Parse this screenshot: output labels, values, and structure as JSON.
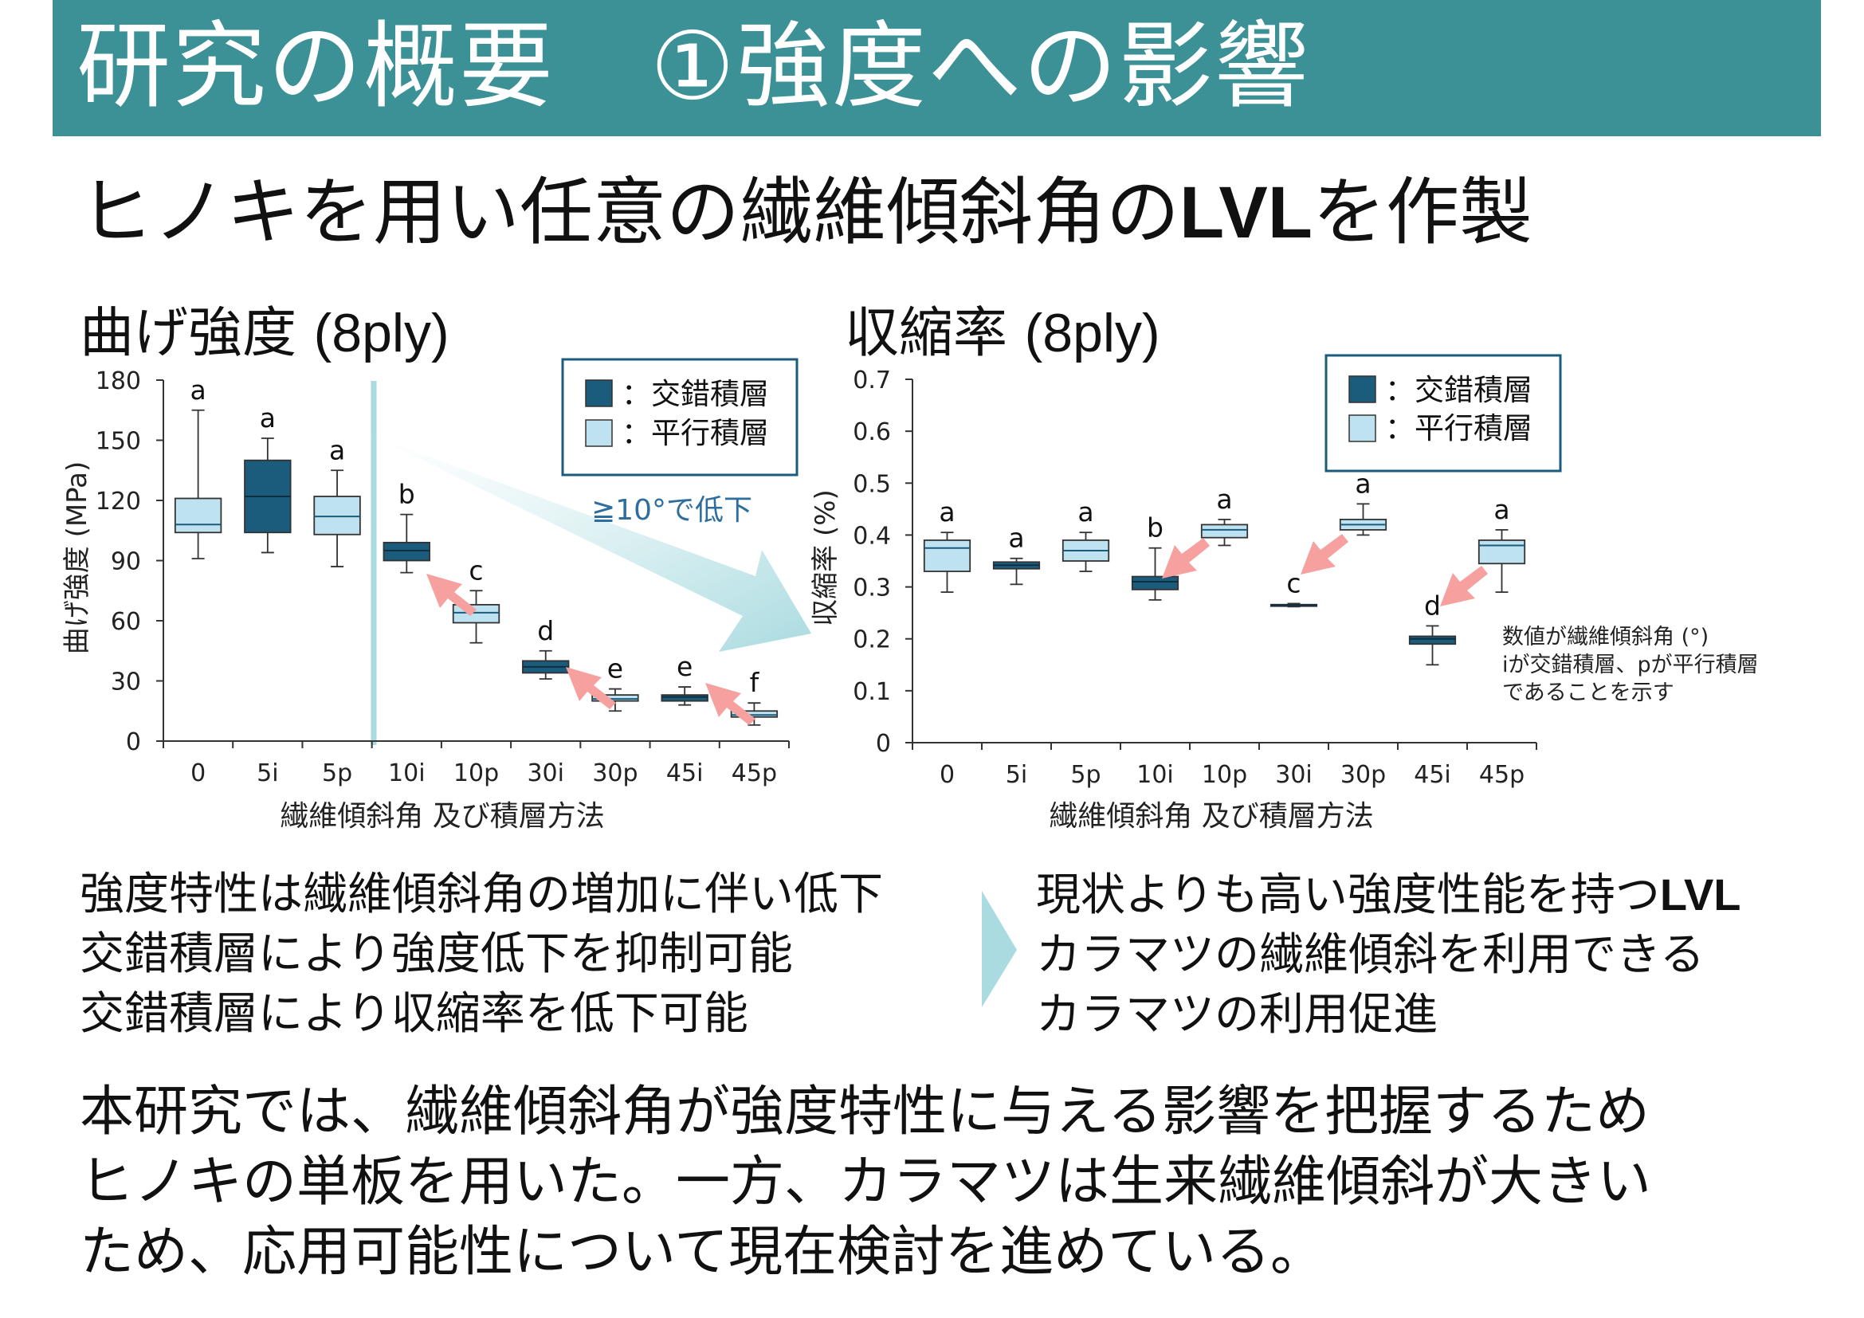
{
  "header": {
    "title": "研究の概要　①強度への影響"
  },
  "subtitle": {
    "prefix": "ヒノキを用い任意の繊維傾斜角の",
    "latin": "LVL",
    "suffix": "を作製"
  },
  "colors": {
    "header_bg": "#3b9196",
    "cross_laminated": "#1b5b7c",
    "parallel_laminated": "#bfe2f1",
    "arrow_pink": "#f7a0a0",
    "arrow_teal": "#a9dbe0",
    "callout_text": "#2d6e9e"
  },
  "chart_data": [
    {
      "type": "box",
      "title_jp": "曲げ強度",
      "title_paren": "(8ply)",
      "ylabel": "曲げ強度 (MPa)",
      "xlabel": "繊維傾斜角 及び積層方法",
      "ylim": [
        0,
        180
      ],
      "yticks": [
        "0",
        "30",
        "60",
        "90",
        "120",
        "150",
        "180"
      ],
      "categories": [
        "0",
        "5i",
        "5p",
        "10i",
        "10p",
        "30i",
        "30p",
        "45i",
        "45p"
      ],
      "legend": [
        "：交錯積層",
        "：平行積層"
      ],
      "legend_position": "top-right",
      "callout": "≧10°で低下",
      "boxes": [
        {
          "cat": "0",
          "type": "p",
          "min": 91,
          "q1": 104,
          "median": 108,
          "q3": 121,
          "max": 165,
          "letter": "a"
        },
        {
          "cat": "5i",
          "type": "i",
          "min": 94,
          "q1": 104,
          "median": 122,
          "q3": 140,
          "max": 151,
          "letter": "a"
        },
        {
          "cat": "5p",
          "type": "p",
          "min": 87,
          "q1": 103,
          "median": 112,
          "q3": 122,
          "max": 135,
          "letter": "a"
        },
        {
          "cat": "10i",
          "type": "i",
          "min": 84,
          "q1": 90,
          "median": 95,
          "q3": 99,
          "max": 113,
          "letter": "b"
        },
        {
          "cat": "10p",
          "type": "p",
          "min": 49,
          "q1": 59,
          "median": 64,
          "q3": 68,
          "max": 75,
          "letter": "c"
        },
        {
          "cat": "30i",
          "type": "i",
          "min": 31,
          "q1": 34,
          "median": 37,
          "q3": 40,
          "max": 45,
          "letter": "d"
        },
        {
          "cat": "30p",
          "type": "p",
          "min": 15,
          "q1": 20,
          "median": 21,
          "q3": 23,
          "max": 26,
          "letter": "e"
        },
        {
          "cat": "45i",
          "type": "i",
          "min": 18,
          "q1": 20,
          "median": 22,
          "q3": 23,
          "max": 27,
          "letter": "e"
        },
        {
          "cat": "45p",
          "type": "p",
          "min": 8,
          "q1": 12,
          "median": 13,
          "q3": 15,
          "max": 19,
          "letter": "f"
        }
      ]
    },
    {
      "type": "box",
      "title_jp": "収縮率",
      "title_paren": "(8ply)",
      "ylabel": "収縮率 (%)",
      "xlabel": "繊維傾斜角 及び積層方法",
      "ylim": [
        0,
        0.7
      ],
      "yticks": [
        "0",
        "0.1",
        "0.2",
        "0.3",
        "0.4",
        "0.5",
        "0.6",
        "0.7"
      ],
      "categories": [
        "0",
        "5i",
        "5p",
        "10i",
        "10p",
        "30i",
        "30p",
        "45i",
        "45p"
      ],
      "legend": [
        "：交錯積層",
        "：平行積層"
      ],
      "legend_position": "top-right",
      "note": [
        "数値が繊維傾斜角 (°)",
        "iが交錯積層、pが平行積層",
        "であることを示す"
      ],
      "boxes": [
        {
          "cat": "0",
          "type": "p",
          "min": 0.29,
          "q1": 0.33,
          "median": 0.375,
          "q3": 0.39,
          "max": 0.405,
          "letter": "a"
        },
        {
          "cat": "5i",
          "type": "i",
          "min": 0.305,
          "q1": 0.335,
          "median": 0.342,
          "q3": 0.348,
          "max": 0.355,
          "letter": "a"
        },
        {
          "cat": "5p",
          "type": "p",
          "min": 0.33,
          "q1": 0.35,
          "median": 0.37,
          "q3": 0.39,
          "max": 0.405,
          "letter": "a"
        },
        {
          "cat": "10i",
          "type": "i",
          "min": 0.275,
          "q1": 0.295,
          "median": 0.31,
          "q3": 0.32,
          "max": 0.375,
          "letter": "b"
        },
        {
          "cat": "10p",
          "type": "p",
          "min": 0.38,
          "q1": 0.395,
          "median": 0.41,
          "q3": 0.42,
          "max": 0.43,
          "letter": "a"
        },
        {
          "cat": "30i",
          "type": "i",
          "min": 0.262,
          "q1": 0.264,
          "median": 0.265,
          "q3": 0.266,
          "max": 0.268,
          "letter": "c"
        },
        {
          "cat": "30p",
          "type": "p",
          "min": 0.4,
          "q1": 0.41,
          "median": 0.42,
          "q3": 0.43,
          "max": 0.46,
          "letter": "a"
        },
        {
          "cat": "45i",
          "type": "i",
          "min": 0.15,
          "q1": 0.19,
          "median": 0.2,
          "q3": 0.205,
          "max": 0.225,
          "letter": "d"
        },
        {
          "cat": "45p",
          "type": "p",
          "min": 0.29,
          "q1": 0.345,
          "median": 0.38,
          "q3": 0.39,
          "max": 0.41,
          "letter": "a"
        }
      ]
    }
  ],
  "findings_left": [
    "強度特性は繊維傾斜角の増加に伴い低下",
    "交錯積層により強度低下を抑制可能",
    "交錯積層により収縮率を低下可能"
  ],
  "findings_right": {
    "line1_prefix": "現状よりも高い強度性能を持つ",
    "line1_latin": "LVL",
    "line2": "カラマツの繊維傾斜を利用できる",
    "line3": "カラマツの利用促進"
  },
  "bottom": [
    "本研究では、繊維傾斜角が強度特性に与える影響を把握するため",
    "ヒノキの単板を用いた。一方、カラマツは生来繊維傾斜が大きい",
    "ため、応用可能性について現在検討を進めている。"
  ]
}
